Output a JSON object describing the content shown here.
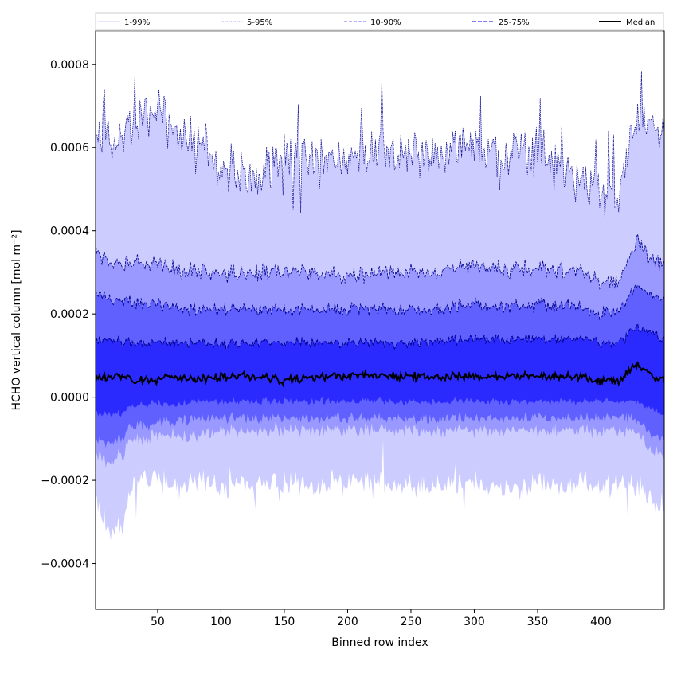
{
  "chart_data": {
    "type": "area",
    "title": "",
    "xlabel": "Binned row index",
    "ylabel": "HCHO vertical column [mol m⁻²]",
    "xlim": [
      1,
      450
    ],
    "ylim": [
      -0.00051,
      0.00088
    ],
    "x_ticks": [
      50,
      100,
      150,
      200,
      250,
      300,
      350,
      400
    ],
    "x_tick_labels": [
      "50",
      "100",
      "150",
      "200",
      "250",
      "300",
      "350",
      "400"
    ],
    "y_ticks": [
      -0.0004,
      -0.0002,
      0.0,
      0.0002,
      0.0004,
      0.0006,
      0.0008
    ],
    "y_tick_labels": [
      "−0.0004",
      "−0.0002",
      "0.0000",
      "0.0002",
      "0.0004",
      "0.0006",
      "0.0008"
    ],
    "legend": {
      "placement": "top",
      "entries": [
        "1-99%",
        "5-95%",
        "10-90%",
        "25-75%",
        "Median"
      ]
    },
    "colors": {
      "band_1_99": "#ccccff",
      "band_5_95": "#9999ff",
      "band_10_90": "#6060ff",
      "band_25_75": "#2a2aff",
      "line": "#00008b",
      "median": "#000000"
    },
    "series": [
      {
        "name": "1-99%",
        "band": "outer",
        "upper_mean": 0.00058,
        "lower_mean": -0.00021
      },
      {
        "name": "5-95%",
        "band": "second",
        "upper_mean": 0.0003,
        "lower_mean": -9e-05
      },
      {
        "name": "10-90%",
        "band": "third",
        "upper_mean": 0.00021,
        "lower_mean": -5e-05
      },
      {
        "name": "25-75%",
        "band": "inner",
        "upper_mean": 0.00013,
        "lower_mean": -1e-05
      },
      {
        "name": "Median",
        "mean": 5e-05
      }
    ],
    "anchors": {
      "x": [
        1,
        10,
        22,
        30,
        40,
        50,
        60,
        80,
        100,
        120,
        150,
        180,
        200,
        230,
        260,
        300,
        330,
        360,
        380,
        400,
        415,
        428,
        440,
        450
      ],
      "p99": [
        0.00064,
        0.00063,
        0.00061,
        0.00066,
        0.00067,
        0.00071,
        0.00064,
        0.0006,
        0.00056,
        0.00053,
        0.00057,
        0.00057,
        0.00057,
        0.00058,
        0.00058,
        0.00061,
        0.0006,
        0.00057,
        0.00053,
        0.0005,
        0.0005,
        0.00069,
        0.00064,
        0.00065
      ],
      "p95": [
        0.00035,
        0.00033,
        0.00031,
        0.00033,
        0.00031,
        0.00032,
        0.00031,
        0.0003,
        0.0003,
        0.0003,
        0.0003,
        0.0003,
        0.00029,
        0.0003,
        0.0003,
        0.00031,
        0.00031,
        0.00031,
        0.0003,
        0.00028,
        0.00028,
        0.00038,
        0.00033,
        0.00032
      ],
      "p90": [
        0.00025,
        0.00024,
        0.00023,
        0.00023,
        0.00022,
        0.00022,
        0.00022,
        0.00021,
        0.00021,
        0.00021,
        0.00021,
        0.00021,
        0.00021,
        0.00021,
        0.00021,
        0.00022,
        0.00022,
        0.00022,
        0.00022,
        0.0002,
        0.00021,
        0.00027,
        0.00024,
        0.00023
      ],
      "p75": [
        0.00013,
        0.00014,
        0.00013,
        0.00013,
        0.00013,
        0.00013,
        0.00013,
        0.00013,
        0.00013,
        0.00013,
        0.00013,
        0.00013,
        0.00013,
        0.00013,
        0.00013,
        0.00014,
        0.00014,
        0.00014,
        0.00014,
        0.00013,
        0.00013,
        0.00017,
        0.00015,
        0.00014
      ],
      "p50": [
        4e-05,
        5e-05,
        5e-05,
        4e-05,
        4e-05,
        4e-05,
        5e-05,
        4e-05,
        5e-05,
        5e-05,
        4e-05,
        5e-05,
        5e-05,
        5e-05,
        5e-05,
        5e-05,
        5e-05,
        5e-05,
        5e-05,
        4e-05,
        4e-05,
        8e-05,
        5e-05,
        4e-05
      ],
      "p25": [
        -4e-05,
        -4e-05,
        -4e-05,
        -2e-05,
        -2e-05,
        -1e-05,
        -2e-05,
        -1e-05,
        -1e-05,
        -1e-05,
        -1e-05,
        -1e-05,
        -1e-05,
        -1e-05,
        -1e-05,
        -1e-05,
        -1e-05,
        -1e-05,
        -1e-05,
        -1e-05,
        -1e-05,
        -1e-05,
        -3e-05,
        -4e-05
      ],
      "p10": [
        -0.0001,
        -0.00011,
        -0.0001,
        -7e-05,
        -7e-05,
        -6e-05,
        -6e-05,
        -5e-05,
        -5e-05,
        -5e-05,
        -5e-05,
        -5e-05,
        -5e-05,
        -5e-05,
        -5e-05,
        -5e-05,
        -5e-05,
        -5e-05,
        -5e-05,
        -5e-05,
        -5e-05,
        -5e-05,
        -9e-05,
        -0.0001
      ],
      "p5": [
        -0.00014,
        -0.00016,
        -0.00014,
        -0.0001,
        -0.0001,
        -9e-05,
        -9e-05,
        -9e-05,
        -8e-05,
        -8e-05,
        -8e-05,
        -8e-05,
        -8e-05,
        -8e-05,
        -8e-05,
        -8e-05,
        -8e-05,
        -8e-05,
        -8e-05,
        -8e-05,
        -8e-05,
        -8e-05,
        -0.00013,
        -0.00014
      ],
      "p1": [
        -0.00025,
        -0.00032,
        -0.00031,
        -0.00021,
        -0.0002,
        -0.0002,
        -0.00021,
        -0.0002,
        -0.00021,
        -0.00021,
        -0.00021,
        -0.00021,
        -0.00021,
        -0.00021,
        -0.00021,
        -0.00021,
        -0.00021,
        -0.00021,
        -0.00021,
        -0.00021,
        -0.00021,
        -0.00021,
        -0.00025,
        -0.00029
      ]
    },
    "noise": {
      "p99": 6e-05,
      "p95": 2.2e-05,
      "p90": 1.6e-05,
      "p75": 1.2e-05,
      "p50": 1e-05,
      "p25": 9e-06,
      "p10": 1.4e-05,
      "p5": 1.8e-05,
      "p1": 3e-05
    }
  }
}
